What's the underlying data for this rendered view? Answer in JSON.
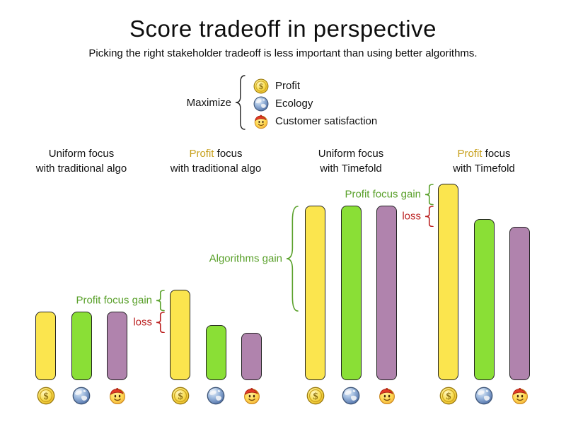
{
  "page": {
    "background": "#ffffff"
  },
  "chart_data": {
    "type": "bar",
    "title": "Score tradeoff in perspective",
    "subtitle": "Picking the right stakeholder tradeoff is less important than using better algorithms.",
    "legend": {
      "prefix": "Maximize",
      "position": "top-center"
    },
    "stakeholders": [
      {
        "name": "Profit",
        "icon": "coin",
        "color": "#fbe54e"
      },
      {
        "name": "Ecology",
        "icon": "globe",
        "color": "#8adf36"
      },
      {
        "name": "Customer satisfaction",
        "icon": "smiley",
        "color": "#b083ad"
      }
    ],
    "value_scale": "relative score, tallest bar = 100 (no numeric axis shown)",
    "grid": false,
    "groups": [
      {
        "line1_em": "",
        "line1_rest": "Uniform focus",
        "line2": "with traditional algo",
        "values": [
          35,
          35,
          35
        ]
      },
      {
        "line1_em": "Profit",
        "line1_rest": " focus",
        "line2": "with traditional algo",
        "values": [
          46,
          28,
          24
        ]
      },
      {
        "line1_em": "",
        "line1_rest": "Uniform focus",
        "line2": "with Timefold",
        "values": [
          89,
          89,
          89
        ]
      },
      {
        "line1_em": "Profit",
        "line1_rest": " focus",
        "line2": "with Timefold",
        "values": [
          100,
          82,
          78
        ]
      }
    ],
    "annotations": [
      {
        "id": "g2-gain",
        "label": "Profit focus gain",
        "kind": "gain",
        "from_value": 46,
        "to_value": 35
      },
      {
        "id": "g2-loss",
        "label": "loss",
        "kind": "loss",
        "from_value": 35,
        "to_value": 24
      },
      {
        "id": "algo-gain",
        "label": "Algorithms gain",
        "kind": "gain",
        "from_value": 89,
        "to_value": 35
      },
      {
        "id": "g4-gain",
        "label": "Profit focus gain",
        "kind": "gain",
        "from_value": 100,
        "to_value": 89
      },
      {
        "id": "g4-loss",
        "label": "loss",
        "kind": "loss",
        "from_value": 89,
        "to_value": 78
      }
    ],
    "colors": {
      "gain_text": "#59a02a",
      "loss_text": "#bb2222",
      "profit_word": "#c7a01c",
      "bar_outline": "#222222",
      "legend_brace": "#222222"
    }
  }
}
